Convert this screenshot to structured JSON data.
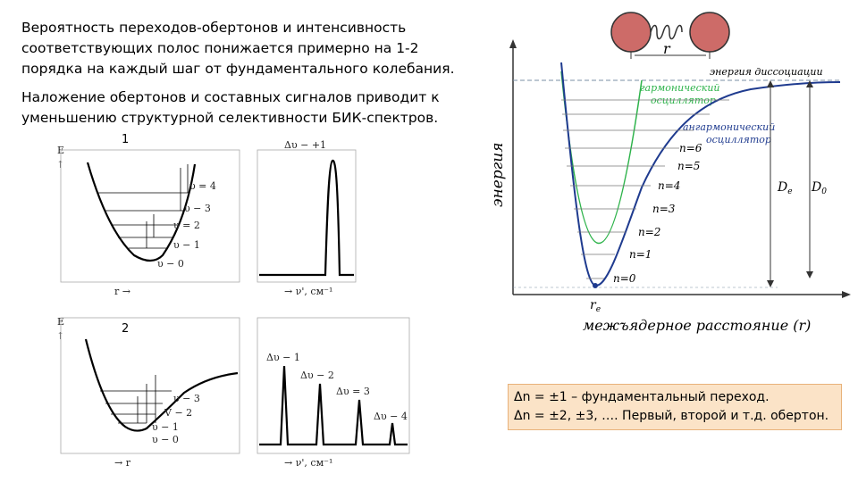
{
  "text": {
    "paragraph1": "Вероятность переходов-обертонов и интенсивность соответствующих полос понижается примерно на 1-2 порядка на каждый шаг от фундаментального колебания.",
    "paragraph2": "Наложение обертонов и составных сигналов приводит к уменьшению структурной селективности БИК-спектров."
  },
  "figure1": {
    "number": "1",
    "axis_e": "E",
    "levels": [
      "υ = 4",
      "υ − 3",
      "υ = 2",
      "υ − 1",
      "υ − 0"
    ],
    "x_axis": "r →",
    "spectrum_label": "Δυ − +1",
    "spectrum_axis": "→ ν', см⁻¹"
  },
  "figure2": {
    "number": "2",
    "axis_e": "E",
    "levels": [
      "υ − 3",
      "V − 2",
      "υ − 1",
      "υ − 0"
    ],
    "x_axis": "→ r",
    "spectrum_labels": [
      "Δυ − 1",
      "Δυ − 2",
      "Δυ = 3",
      "Δυ − 4"
    ],
    "spectrum_axis": "→ ν', см⁻¹"
  },
  "morse": {
    "r_label": "r",
    "dissociation": "энергия диссоциации",
    "harmonic": [
      "гармонический",
      "осциллятор"
    ],
    "anharmonic": [
      "ангармонический",
      "осциллятор"
    ],
    "y_label": "энергия",
    "levels": [
      "n=6",
      "n=5",
      "n=4",
      "n=3",
      "n=2",
      "n=1",
      "n=0"
    ],
    "De": "D",
    "De_sub": "e",
    "D0": "D",
    "D0_sub": "0",
    "re": "r",
    "re_sub": "e",
    "x_label": "межъядерное расстояние (r)",
    "colors": {
      "harmonic": "#2db34a",
      "anharmonic": "#1f3b8f",
      "atom": "#cd6b68",
      "dashed": "#7a8fa6"
    }
  },
  "note": {
    "line1": "Δn = ±1 – фундаментальный переход.",
    "line2": "Δn = ±2, ±3, …. Первый, второй и т.д. обертон."
  }
}
